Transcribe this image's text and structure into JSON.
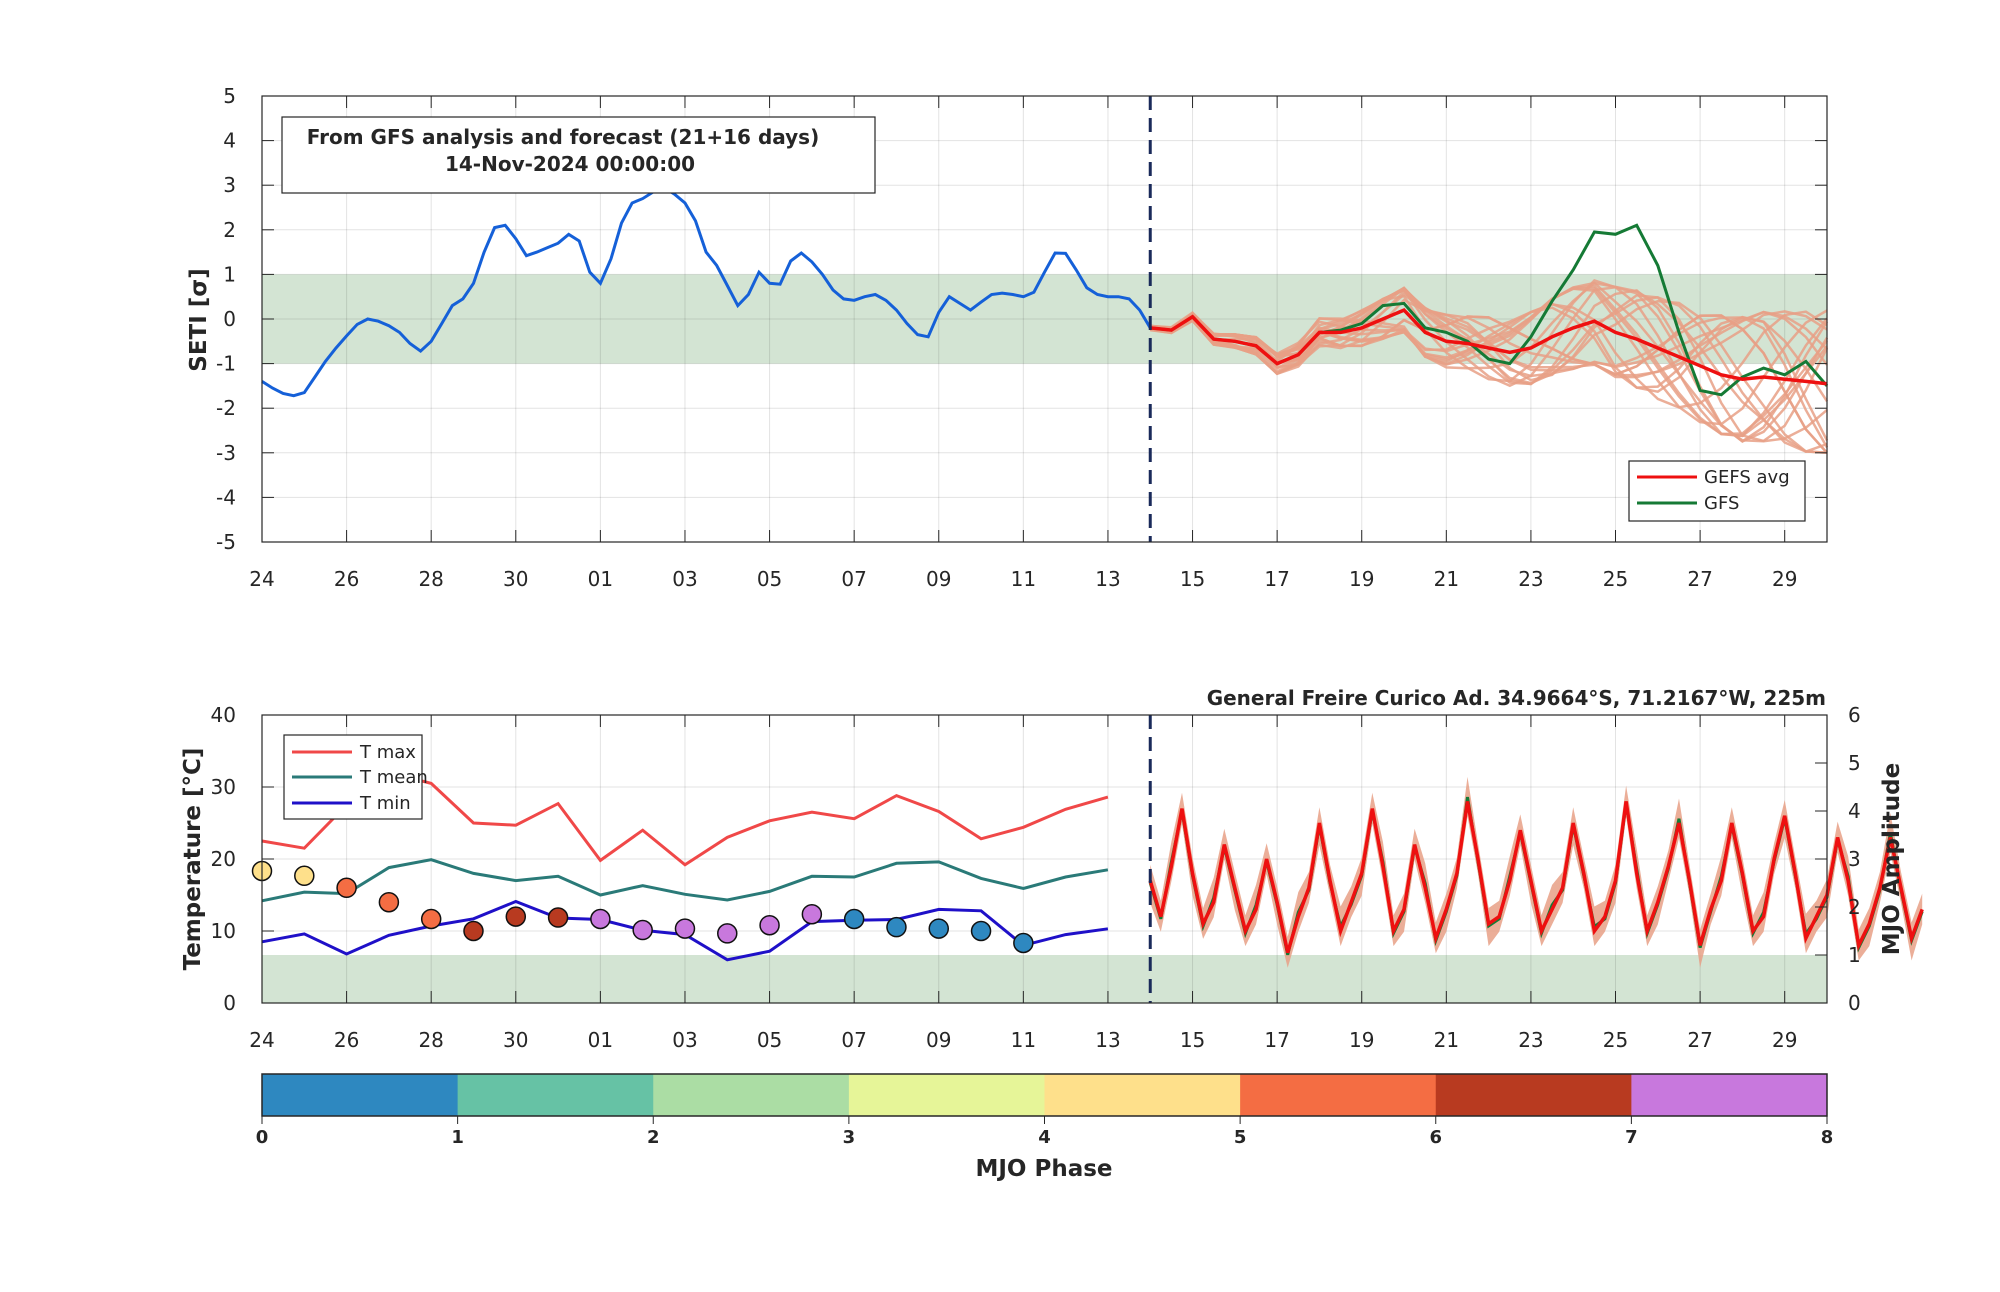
{
  "chart_data": [
    {
      "type": "line",
      "ylabel": "SETI [σ]",
      "ylim": [
        -5,
        5
      ],
      "yticks": [
        "5",
        "4",
        "3",
        "2",
        "1",
        "0",
        "-1",
        "-2",
        "-3",
        "-4",
        "-5"
      ],
      "x_day_ticks": [
        "24",
        "26",
        "28",
        "30",
        "01",
        "03",
        "05",
        "07",
        "09",
        "11",
        "13",
        "15",
        "17",
        "19",
        "21",
        "23",
        "25",
        "27",
        "29"
      ],
      "x_start": "2024-10-24",
      "x_end": "2024-11-30",
      "forecast_start": "2024-11-14",
      "normal_band": [
        -1,
        1
      ],
      "annotation_line1": "From GFS analysis and forecast (21+16 days)",
      "annotation_line2": "14-Nov-2024 00:00:00",
      "legend": {
        "gefs_avg": "GEFS avg",
        "gfs": "GFS"
      },
      "colors": {
        "analysis": "#1560d8",
        "gefs_avg": "#ee1010",
        "gfs": "#157a35",
        "members": "#e8a086",
        "band": "#d3e4d3",
        "forecast_line": "#1a2a5a"
      },
      "analysis": {
        "x": [
          "2024-10-24 00",
          "2024-10-24 06",
          "2024-10-24 12",
          "2024-10-24 18",
          "2024-10-25 00",
          "2024-10-25 06",
          "2024-10-25 12",
          "2024-10-25 18",
          "2024-10-26 00",
          "2024-10-26 06",
          "2024-10-26 12",
          "2024-10-26 18",
          "2024-10-27 00",
          "2024-10-27 06",
          "2024-10-27 12",
          "2024-10-27 18",
          "2024-10-28 00",
          "2024-10-28 06",
          "2024-10-28 12",
          "2024-10-28 18",
          "2024-10-29 00",
          "2024-10-29 06",
          "2024-10-29 12",
          "2024-10-29 18",
          "2024-10-30 00",
          "2024-10-30 06",
          "2024-10-30 12",
          "2024-10-30 18",
          "2024-10-31 00",
          "2024-10-31 06",
          "2024-10-31 12",
          "2024-10-31 18",
          "2024-11-01 00",
          "2024-11-01 06",
          "2024-11-01 12",
          "2024-11-01 18",
          "2024-11-02 00",
          "2024-11-02 06",
          "2024-11-02 12",
          "2024-11-02 18",
          "2024-11-03 00",
          "2024-11-03 06",
          "2024-11-03 12",
          "2024-11-03 18",
          "2024-11-04 00",
          "2024-11-04 06",
          "2024-11-04 12",
          "2024-11-04 18",
          "2024-11-05 00",
          "2024-11-05 06",
          "2024-11-05 12",
          "2024-11-05 18",
          "2024-11-06 00",
          "2024-11-06 06",
          "2024-11-06 12",
          "2024-11-06 18",
          "2024-11-07 00",
          "2024-11-07 06",
          "2024-11-07 12",
          "2024-11-07 18",
          "2024-11-08 00",
          "2024-11-08 06",
          "2024-11-08 12",
          "2024-11-08 18",
          "2024-11-09 00",
          "2024-11-09 06",
          "2024-11-09 12",
          "2024-11-09 18",
          "2024-11-10 00",
          "2024-11-10 06",
          "2024-11-10 12",
          "2024-11-10 18",
          "2024-11-11 00",
          "2024-11-11 06",
          "2024-11-11 12",
          "2024-11-11 18",
          "2024-11-12 00",
          "2024-11-12 06",
          "2024-11-12 12",
          "2024-11-12 18",
          "2024-11-13 00",
          "2024-11-13 06",
          "2024-11-13 12",
          "2024-11-13 18",
          "2024-11-14 00"
        ],
        "y": [
          -1.4,
          -1.55,
          -1.67,
          -1.72,
          -1.65,
          -1.3,
          -0.95,
          -0.65,
          -0.38,
          -0.12,
          0.0,
          -0.05,
          -0.15,
          -0.3,
          -0.55,
          -0.72,
          -0.5,
          -0.1,
          0.3,
          0.45,
          0.8,
          1.5,
          2.05,
          2.1,
          1.8,
          1.42,
          1.5,
          1.6,
          1.7,
          1.9,
          1.75,
          1.05,
          0.8,
          1.35,
          2.15,
          2.6,
          2.7,
          2.85,
          2.95,
          2.8,
          2.6,
          2.2,
          1.5,
          1.2,
          0.75,
          0.3,
          0.55,
          1.05,
          0.8,
          0.78,
          1.3,
          1.48,
          1.28,
          1.0,
          0.65,
          0.45,
          0.42,
          0.5,
          0.55,
          0.42,
          0.2,
          -0.1,
          -0.35,
          -0.4,
          0.15,
          0.5,
          0.35,
          0.2,
          0.38,
          0.55,
          0.58,
          0.55,
          0.5,
          0.6,
          1.05,
          1.48,
          1.47,
          1.1,
          0.7,
          0.55,
          0.5,
          0.5,
          0.45,
          0.2,
          -0.2
        ]
      },
      "gefs_avg": {
        "x": [
          "2024-11-14",
          "2024-11-14 12",
          "2024-11-15",
          "2024-11-15 12",
          "2024-11-16",
          "2024-11-16 12",
          "2024-11-17",
          "2024-11-17 12",
          "2024-11-18",
          "2024-11-18 12",
          "2024-11-19",
          "2024-11-19 12",
          "2024-11-20",
          "2024-11-20 12",
          "2024-11-21",
          "2024-11-21 12",
          "2024-11-22",
          "2024-11-22 12",
          "2024-11-23",
          "2024-11-23 12",
          "2024-11-24",
          "2024-11-24 12",
          "2024-11-25",
          "2024-11-25 12",
          "2024-11-26",
          "2024-11-26 12",
          "2024-11-27",
          "2024-11-27 12",
          "2024-11-28",
          "2024-11-28 12",
          "2024-11-29",
          "2024-11-29 12",
          "2024-11-30"
        ],
        "y": [
          -0.2,
          -0.25,
          0.05,
          -0.45,
          -0.5,
          -0.6,
          -1.0,
          -0.8,
          -0.3,
          -0.3,
          -0.2,
          0.0,
          0.2,
          -0.3,
          -0.5,
          -0.55,
          -0.65,
          -0.75,
          -0.65,
          -0.4,
          -0.2,
          -0.05,
          -0.3,
          -0.45,
          -0.65,
          -0.85,
          -1.05,
          -1.25,
          -1.35,
          -1.3,
          -1.35,
          -1.4,
          -1.45
        ]
      },
      "gfs": {
        "x": [
          "2024-11-14",
          "2024-11-14 12",
          "2024-11-15",
          "2024-11-15 12",
          "2024-11-16",
          "2024-11-16 12",
          "2024-11-17",
          "2024-11-17 12",
          "2024-11-18",
          "2024-11-18 12",
          "2024-11-19",
          "2024-11-19 12",
          "2024-11-20",
          "2024-11-20 12",
          "2024-11-21",
          "2024-11-21 12",
          "2024-11-22",
          "2024-11-22 12",
          "2024-11-23",
          "2024-11-23 12",
          "2024-11-24",
          "2024-11-24 12",
          "2024-11-25",
          "2024-11-25 12",
          "2024-11-26",
          "2024-11-26 12",
          "2024-11-27",
          "2024-11-27 12",
          "2024-11-28",
          "2024-11-28 12",
          "2024-11-29",
          "2024-11-29 12",
          "2024-11-30"
        ],
        "y": [
          -0.2,
          -0.25,
          0.05,
          -0.45,
          -0.5,
          -0.6,
          -1.0,
          -0.8,
          -0.3,
          -0.25,
          -0.1,
          0.3,
          0.35,
          -0.2,
          -0.3,
          -0.5,
          -0.9,
          -1.0,
          -0.4,
          0.4,
          1.1,
          1.95,
          1.9,
          2.1,
          1.2,
          -0.3,
          -1.6,
          -1.7,
          -1.3,
          -1.1,
          -1.25,
          -0.95,
          -1.5
        ]
      }
    },
    {
      "type": "line",
      "title": "General Freire Curico Ad. 34.9664°S, 71.2167°W, 225m",
      "ylabel": "Temperature [°C]",
      "ylabel_right": "MJO Amplitude",
      "ylim": [
        0,
        40
      ],
      "ylim_right": [
        0,
        6
      ],
      "yticks": [
        "40",
        "30",
        "20",
        "10",
        "0"
      ],
      "yticks_right": [
        "6",
        "5",
        "4",
        "3",
        "2",
        "1",
        "0"
      ],
      "x_day_ticks": [
        "24",
        "26",
        "28",
        "30",
        "01",
        "03",
        "05",
        "07",
        "09",
        "11",
        "13",
        "15",
        "17",
        "19",
        "21",
        "23",
        "25",
        "27",
        "29"
      ],
      "forecast_start": "2024-11-14",
      "mjo_band": [
        0,
        1
      ],
      "legend": {
        "tmax": "T max",
        "tmean": "T mean",
        "tmin": "T min"
      },
      "colors": {
        "tmax": "#f04848",
        "tmean": "#2a7a78",
        "tmin": "#1f10c8",
        "fc_spread": "#e8a086",
        "fc_gfs": "#157a35",
        "fc_mean": "#ee1010"
      },
      "dates": [
        "2024-10-24",
        "2024-10-25",
        "2024-10-26",
        "2024-10-27",
        "2024-10-28",
        "2024-10-29",
        "2024-10-30",
        "2024-10-31",
        "2024-11-01",
        "2024-11-02",
        "2024-11-03",
        "2024-11-04",
        "2024-11-05",
        "2024-11-06",
        "2024-11-07",
        "2024-11-08",
        "2024-11-09",
        "2024-11-10",
        "2024-11-11",
        "2024-11-12",
        "2024-11-13"
      ],
      "tmax": [
        22.5,
        21.5,
        27.5,
        32.0,
        30.5,
        25.0,
        24.7,
        27.7,
        19.8,
        24.0,
        19.2,
        23.0,
        25.3,
        26.5,
        25.6,
        28.8,
        26.6,
        22.8,
        24.4,
        26.9,
        28.6
      ],
      "tmean": [
        14.2,
        15.4,
        15.2,
        18.8,
        19.9,
        18.0,
        17.0,
        17.6,
        15.0,
        16.3,
        15.1,
        14.3,
        15.5,
        17.6,
        17.5,
        19.4,
        19.6,
        17.3,
        15.9,
        17.5,
        18.5
      ],
      "tmin": [
        8.5,
        9.6,
        6.8,
        9.4,
        10.7,
        11.7,
        14.1,
        11.8,
        11.6,
        10.1,
        9.5,
        6.0,
        7.2,
        11.3,
        11.5,
        11.6,
        13.0,
        12.8,
        8.0,
        9.5,
        10.3
      ],
      "mjo": {
        "dates": [
          "2024-10-24",
          "2024-10-25",
          "2024-10-26",
          "2024-10-27",
          "2024-10-28",
          "2024-10-29",
          "2024-10-30",
          "2024-10-31",
          "2024-11-01",
          "2024-11-02",
          "2024-11-03",
          "2024-11-04",
          "2024-11-05",
          "2024-11-06",
          "2024-11-07",
          "2024-11-08",
          "2024-11-09",
          "2024-11-10",
          "2024-11-11"
        ],
        "amplitude": [
          2.75,
          2.65,
          2.4,
          2.1,
          1.75,
          1.5,
          1.8,
          1.78,
          1.75,
          1.52,
          1.55,
          1.45,
          1.62,
          1.85,
          1.75,
          1.58,
          1.55,
          1.5,
          1.25
        ],
        "phase": [
          5,
          5,
          6,
          6,
          6,
          7,
          7,
          7,
          8,
          8,
          8,
          8,
          8,
          8,
          1,
          1,
          1,
          1,
          1
        ]
      },
      "forecast_temp": {
        "x_start": "2024-11-14",
        "step_hours": 6,
        "y": [
          17,
          12,
          19,
          27,
          18,
          11,
          14,
          22,
          16,
          10,
          13,
          20,
          14,
          7,
          12,
          16,
          25,
          17,
          10,
          14,
          18,
          27,
          19,
          10,
          13,
          22,
          16,
          9,
          13,
          18,
          28,
          20,
          11,
          12,
          17,
          24,
          17,
          10,
          13,
          16,
          25,
          18,
          10,
          12,
          17,
          28,
          18,
          10,
          14,
          19,
          25,
          17,
          8,
          13,
          17,
          25,
          18,
          10,
          12,
          20,
          26,
          18,
          9,
          12,
          15,
          23,
          17,
          8,
          11,
          16,
          23,
          16,
          9,
          13
        ]
      }
    },
    {
      "type": "colorbar",
      "label": "MJO Phase",
      "ticks": [
        "0",
        "1",
        "2",
        "3",
        "4",
        "5",
        "6",
        "7",
        "8"
      ],
      "phase_colors": [
        "#2e88c0",
        "#66c2a5",
        "#abdda4",
        "#e6f598",
        "#fee08b",
        "#f46d43",
        "#b83a20",
        "#c878dd"
      ]
    }
  ]
}
